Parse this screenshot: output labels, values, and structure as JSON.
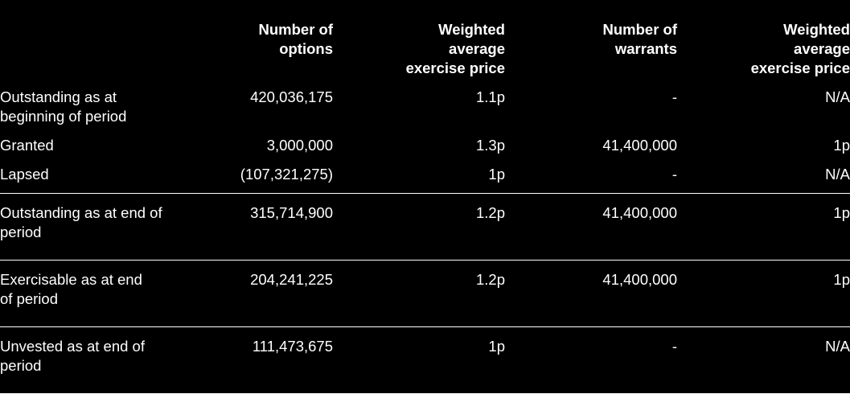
{
  "headers": [
    "",
    "Number of options",
    "Weighted average exercise price",
    "Number of warrants",
    "Weighted average exercise price"
  ],
  "header_lines": [
    [],
    [
      "Number of",
      "options"
    ],
    [
      "Weighted",
      "average",
      "exercise price"
    ],
    [
      "Number of",
      "warrants"
    ],
    [
      "Weighted",
      "average",
      "exercise price"
    ]
  ],
  "rows": [
    {
      "label": "Outstanding as at beginning of period",
      "options": "420,036,175",
      "options_price": "1.1p",
      "warrants": "-",
      "warrants_price": "N/A"
    },
    {
      "label": "Granted",
      "options": "3,000,000",
      "options_price": "1.3p",
      "warrants": "41,400,000",
      "warrants_price": "1p"
    },
    {
      "label": "Lapsed",
      "options": "(107,321,275)",
      "options_price": "1p",
      "warrants": "-",
      "warrants_price": "N/A"
    },
    {
      "label": "Outstanding as at end of period",
      "options": "315,714,900",
      "options_price": "1.2p",
      "warrants": "41,400,000",
      "warrants_price": "1p"
    },
    {
      "label": "Exercisable as at end of period",
      "options": "204,241,225",
      "options_price": "1.2p",
      "warrants": "41,400,000",
      "warrants_price": "1p"
    },
    {
      "label": "Unvested as at end of period",
      "options": "111,473,675",
      "options_price": "1p",
      "warrants": "-",
      "warrants_price": "N/A"
    }
  ]
}
